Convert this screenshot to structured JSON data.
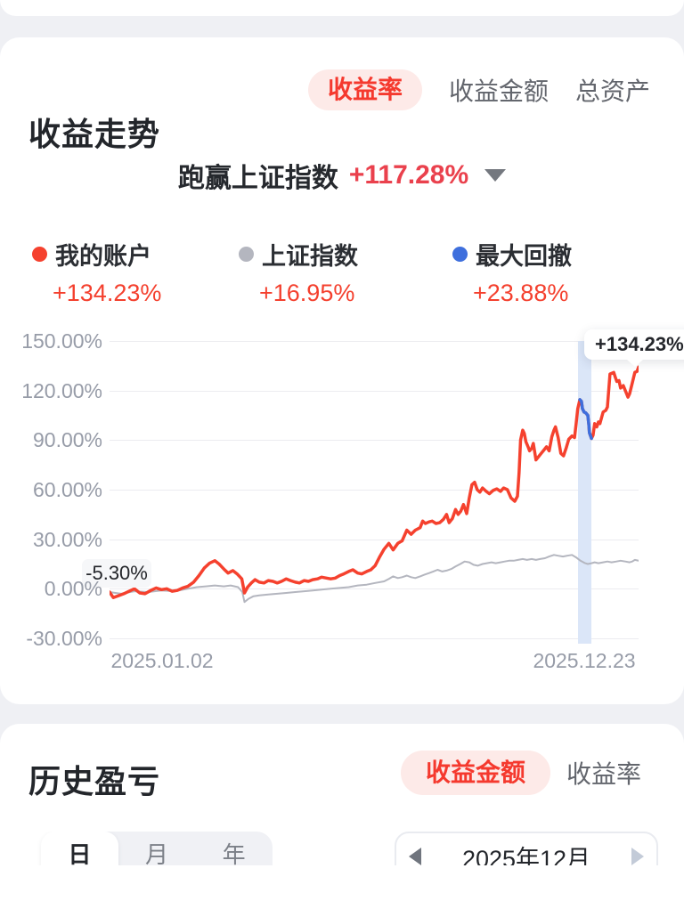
{
  "theme": {
    "accent_red": "#f5392e",
    "pill_bg": "#fdeae8",
    "subtitle_red": "#ea414d",
    "index_gray": "#b4b6bf",
    "drawdown_blue": "#3e6fdd",
    "band_blue": "#dbe6f8",
    "axis_gray": "#979ca8"
  },
  "trend_card": {
    "title": "收益走势",
    "tabs": [
      {
        "label": "收益率",
        "selected": true
      },
      {
        "label": "收益金额",
        "selected": false
      },
      {
        "label": "总资产",
        "selected": false
      }
    ],
    "subtitle": {
      "prefix": "跑赢上证指数",
      "value": "+117.28%"
    },
    "legend": [
      {
        "label": "我的账户",
        "value": "+134.23%"
      },
      {
        "label": "上证指数",
        "value": "+16.95%"
      },
      {
        "label": "最大回撤",
        "value": "+23.88%"
      }
    ],
    "annotations": {
      "start_tooltip": "-5.30%",
      "end_tooltip": "+134.23%"
    }
  },
  "history_card": {
    "title": "历史盈亏",
    "tabs": [
      {
        "label": "收益金额",
        "selected": true
      },
      {
        "label": "收益率",
        "selected": false
      }
    ],
    "period_tabs": [
      {
        "label": "日",
        "selected": true
      },
      {
        "label": "月",
        "selected": false
      },
      {
        "label": "年",
        "selected": false
      }
    ],
    "date_picker": {
      "value": "2025年12月"
    }
  },
  "chart_data": {
    "type": "line",
    "title": "收益走势 (收益率)",
    "grid": true,
    "ylim": [
      -30,
      150
    ],
    "y_tick_values": [
      150,
      120,
      90,
      60,
      30,
      0,
      -30
    ],
    "y_ticks": [
      "150.00%",
      "120.00%",
      "90.00%",
      "60.00%",
      "30.00%",
      "0.00%",
      "-30.00%"
    ],
    "x_tick_labels": [
      "2025.01.02",
      "2025.12.23"
    ],
    "highlight_band": {
      "x_start": 0.886,
      "x_end": 0.91
    },
    "series": [
      {
        "name": "我的账户",
        "color": "#f5412e",
        "width": 3.5,
        "final": "+134.23%",
        "points": [
          [
            0,
            -2
          ],
          [
            0.007,
            -5.3
          ],
          [
            0.017,
            -4.2
          ],
          [
            0.027,
            -3
          ],
          [
            0.037,
            -1.5
          ],
          [
            0.047,
            0
          ],
          [
            0.057,
            -2.5
          ],
          [
            0.067,
            -3
          ],
          [
            0.078,
            -1
          ],
          [
            0.088,
            0.5
          ],
          [
            0.098,
            -0.5
          ],
          [
            0.108,
            0
          ],
          [
            0.118,
            -1.5
          ],
          [
            0.128,
            -1
          ],
          [
            0.138,
            0.5
          ],
          [
            0.148,
            1.5
          ],
          [
            0.159,
            4
          ],
          [
            0.169,
            8
          ],
          [
            0.179,
            12.5
          ],
          [
            0.189,
            15.5
          ],
          [
            0.199,
            17
          ],
          [
            0.207,
            15
          ],
          [
            0.216,
            12
          ],
          [
            0.224,
            9.5
          ],
          [
            0.233,
            11
          ],
          [
            0.241,
            9
          ],
          [
            0.25,
            6
          ],
          [
            0.255,
            -2.5
          ],
          [
            0.261,
            1
          ],
          [
            0.268,
            3.5
          ],
          [
            0.275,
            5.5
          ],
          [
            0.283,
            4
          ],
          [
            0.292,
            3.5
          ],
          [
            0.3,
            5
          ],
          [
            0.309,
            4.5
          ],
          [
            0.317,
            3.5
          ],
          [
            0.325,
            4.5
          ],
          [
            0.334,
            6
          ],
          [
            0.342,
            5
          ],
          [
            0.351,
            4
          ],
          [
            0.359,
            3.5
          ],
          [
            0.368,
            5
          ],
          [
            0.376,
            4.5
          ],
          [
            0.384,
            5.5
          ],
          [
            0.393,
            6
          ],
          [
            0.401,
            7
          ],
          [
            0.41,
            6.5
          ],
          [
            0.418,
            6
          ],
          [
            0.427,
            6.5
          ],
          [
            0.435,
            8
          ],
          [
            0.443,
            9
          ],
          [
            0.452,
            10.5
          ],
          [
            0.46,
            11.5
          ],
          [
            0.469,
            9.5
          ],
          [
            0.477,
            9
          ],
          [
            0.486,
            10.5
          ],
          [
            0.494,
            11.5
          ],
          [
            0.502,
            14
          ],
          [
            0.511,
            19.5
          ],
          [
            0.519,
            24
          ],
          [
            0.528,
            27.5
          ],
          [
            0.536,
            23.5
          ],
          [
            0.545,
            27.5
          ],
          [
            0.553,
            29
          ],
          [
            0.562,
            35.5
          ],
          [
            0.57,
            33
          ],
          [
            0.578,
            35.5
          ],
          [
            0.587,
            37
          ],
          [
            0.592,
            41
          ],
          [
            0.597,
            39.5
          ],
          [
            0.604,
            40.5
          ],
          [
            0.61,
            41
          ],
          [
            0.617,
            39.5
          ],
          [
            0.624,
            40
          ],
          [
            0.631,
            42
          ],
          [
            0.637,
            45
          ],
          [
            0.642,
            40
          ],
          [
            0.648,
            42.5
          ],
          [
            0.654,
            48
          ],
          [
            0.659,
            45
          ],
          [
            0.664,
            47
          ],
          [
            0.669,
            51
          ],
          [
            0.675,
            45.5
          ],
          [
            0.68,
            55
          ],
          [
            0.685,
            63
          ],
          [
            0.69,
            64.5
          ],
          [
            0.695,
            60
          ],
          [
            0.7,
            58.5
          ],
          [
            0.705,
            61
          ],
          [
            0.712,
            59
          ],
          [
            0.718,
            57.5
          ],
          [
            0.725,
            59.5
          ],
          [
            0.732,
            60.5
          ],
          [
            0.739,
            59
          ],
          [
            0.745,
            61
          ],
          [
            0.752,
            60
          ],
          [
            0.759,
            55
          ],
          [
            0.766,
            53
          ],
          [
            0.771,
            56
          ],
          [
            0.774,
            70
          ],
          [
            0.777,
            90
          ],
          [
            0.781,
            96
          ],
          [
            0.784,
            94
          ],
          [
            0.787,
            89
          ],
          [
            0.791,
            86
          ],
          [
            0.794,
            83.5
          ],
          [
            0.798,
            85
          ],
          [
            0.801,
            88
          ],
          [
            0.806,
            78
          ],
          [
            0.811,
            80
          ],
          [
            0.816,
            82
          ],
          [
            0.821,
            84
          ],
          [
            0.826,
            86
          ],
          [
            0.831,
            83.5
          ],
          [
            0.836,
            92
          ],
          [
            0.84,
            96
          ],
          [
            0.843,
            98
          ],
          [
            0.848,
            91.5
          ],
          [
            0.853,
            82
          ],
          [
            0.858,
            80.5
          ],
          [
            0.863,
            85
          ],
          [
            0.868,
            90.5
          ],
          [
            0.874,
            92.5
          ],
          [
            0.879,
            91.5
          ],
          [
            0.882,
            100
          ],
          [
            0.885,
            109
          ],
          [
            0.889,
            114.5
          ],
          [
            0.892,
            113.5
          ],
          [
            0.894,
            109
          ],
          [
            0.897,
            107
          ],
          [
            0.9,
            106.5
          ],
          [
            0.904,
            105
          ],
          [
            0.906,
            99
          ],
          [
            0.907,
            94.5
          ],
          [
            0.911,
            91
          ],
          [
            0.914,
            93
          ],
          [
            0.917,
            100
          ],
          [
            0.921,
            98
          ],
          [
            0.924,
            101
          ],
          [
            0.927,
            100
          ],
          [
            0.933,
            107
          ],
          [
            0.938,
            108
          ],
          [
            0.941,
            110
          ],
          [
            0.946,
            130
          ],
          [
            0.953,
            131
          ],
          [
            0.956,
            128
          ],
          [
            0.959,
            125.5
          ],
          [
            0.963,
            126
          ],
          [
            0.966,
            121.5
          ],
          [
            0.971,
            123
          ],
          [
            0.975,
            120
          ],
          [
            0.98,
            116
          ],
          [
            0.983,
            118
          ],
          [
            0.988,
            124.5
          ],
          [
            0.993,
            131
          ],
          [
            0.997,
            131.5
          ],
          [
            1,
            134.2
          ]
        ]
      },
      {
        "name": "上证指数",
        "color": "#b4b6bf",
        "width": 2,
        "final": "+16.95%",
        "points": [
          [
            0,
            -2
          ],
          [
            0.022,
            -3
          ],
          [
            0.047,
            -1.5
          ],
          [
            0.073,
            -2
          ],
          [
            0.098,
            -1
          ],
          [
            0.123,
            -1.5
          ],
          [
            0.148,
            0
          ],
          [
            0.165,
            1
          ],
          [
            0.182,
            1.5
          ],
          [
            0.199,
            2
          ],
          [
            0.216,
            1.5
          ],
          [
            0.229,
            2
          ],
          [
            0.243,
            1
          ],
          [
            0.251,
            -2
          ],
          [
            0.255,
            -8
          ],
          [
            0.263,
            -6
          ],
          [
            0.272,
            -4.5
          ],
          [
            0.283,
            -4
          ],
          [
            0.3,
            -3.5
          ],
          [
            0.317,
            -3
          ],
          [
            0.334,
            -2.5
          ],
          [
            0.351,
            -2
          ],
          [
            0.368,
            -1.5
          ],
          [
            0.384,
            -1
          ],
          [
            0.401,
            -0.5
          ],
          [
            0.418,
            0
          ],
          [
            0.435,
            0.5
          ],
          [
            0.452,
            1
          ],
          [
            0.469,
            2
          ],
          [
            0.486,
            2.5
          ],
          [
            0.502,
            3.5
          ],
          [
            0.519,
            4.5
          ],
          [
            0.528,
            6
          ],
          [
            0.536,
            7.5
          ],
          [
            0.545,
            6.5
          ],
          [
            0.553,
            7
          ],
          [
            0.562,
            8
          ],
          [
            0.57,
            7
          ],
          [
            0.578,
            6.5
          ],
          [
            0.587,
            7.5
          ],
          [
            0.595,
            8.5
          ],
          [
            0.604,
            9.5
          ],
          [
            0.612,
            10.5
          ],
          [
            0.62,
            11.5
          ],
          [
            0.629,
            10.5
          ],
          [
            0.637,
            11
          ],
          [
            0.646,
            12
          ],
          [
            0.654,
            13.5
          ],
          [
            0.663,
            15
          ],
          [
            0.671,
            16.5
          ],
          [
            0.68,
            16
          ],
          [
            0.688,
            14.5
          ],
          [
            0.696,
            14
          ],
          [
            0.705,
            15
          ],
          [
            0.713,
            15.5
          ],
          [
            0.722,
            16
          ],
          [
            0.73,
            15.5
          ],
          [
            0.739,
            16
          ],
          [
            0.747,
            16.5
          ],
          [
            0.755,
            17
          ],
          [
            0.764,
            17
          ],
          [
            0.772,
            17.5
          ],
          [
            0.781,
            18
          ],
          [
            0.789,
            17.5
          ],
          [
            0.798,
            18
          ],
          [
            0.806,
            17.5
          ],
          [
            0.814,
            18
          ],
          [
            0.823,
            18.5
          ],
          [
            0.831,
            19.5
          ],
          [
            0.84,
            20.5
          ],
          [
            0.848,
            20
          ],
          [
            0.857,
            19.5
          ],
          [
            0.865,
            20
          ],
          [
            0.874,
            20.5
          ],
          [
            0.882,
            19
          ],
          [
            0.89,
            17
          ],
          [
            0.899,
            15.5
          ],
          [
            0.904,
            15
          ],
          [
            0.911,
            15.5
          ],
          [
            0.917,
            16
          ],
          [
            0.924,
            15.5
          ],
          [
            0.933,
            16
          ],
          [
            0.941,
            16.5
          ],
          [
            0.949,
            16
          ],
          [
            0.958,
            16.5
          ],
          [
            0.966,
            17
          ],
          [
            0.975,
            16.5
          ],
          [
            0.983,
            16
          ],
          [
            0.988,
            16.5
          ],
          [
            0.993,
            17.5
          ],
          [
            1,
            17
          ]
        ]
      },
      {
        "name": "最大回撤",
        "color": "#3e6fdd",
        "width": 3.5,
        "final": "+23.88%",
        "points": [
          [
            0.889,
            114.5
          ],
          [
            0.892,
            113.5
          ],
          [
            0.894,
            109
          ],
          [
            0.897,
            107
          ],
          [
            0.9,
            106.5
          ],
          [
            0.904,
            105
          ],
          [
            0.906,
            99
          ],
          [
            0.907,
            94.5
          ],
          [
            0.911,
            91
          ]
        ]
      }
    ]
  }
}
